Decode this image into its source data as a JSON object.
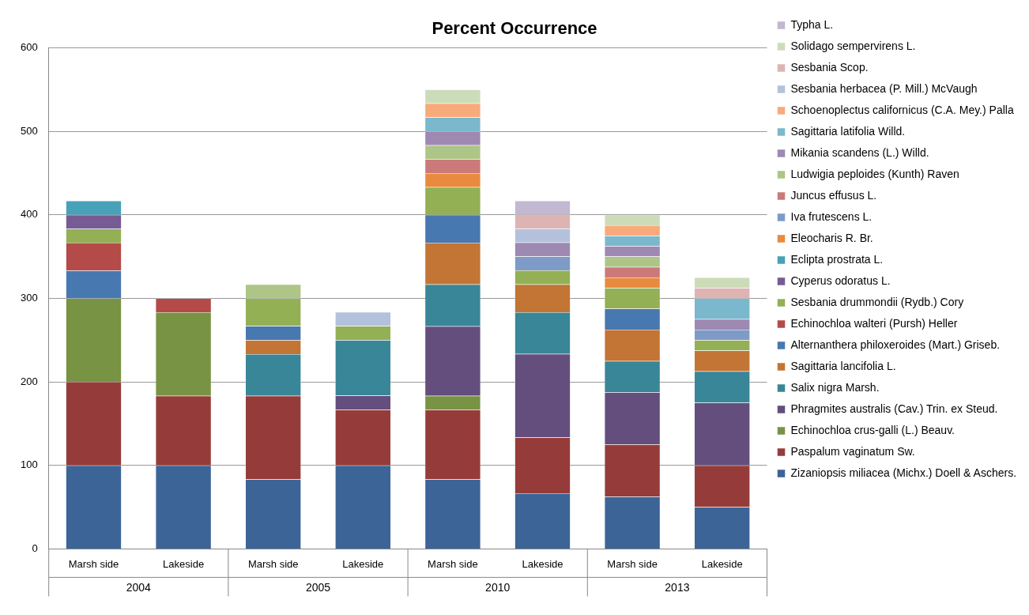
{
  "chart_data": {
    "type": "bar",
    "title": "Percent Occurrence",
    "stacked": true,
    "legend": "right",
    "grid": "y",
    "categories": [
      "Marsh side",
      "Lakeside",
      "Marsh side",
      "Lakeside",
      "Marsh side",
      "Lakeside",
      "Marsh side",
      "Lakeside"
    ],
    "annotations": [
      "2004",
      "2005",
      "2010",
      "2013"
    ],
    "ylim": [
      0,
      600
    ],
    "yticks": [
      0,
      100,
      200,
      300,
      400,
      500,
      600
    ],
    "series": [
      {
        "name": "Zizaniopsis miliacea (Michx.) Doell & Aschers.",
        "color": "#3c6497",
        "values": [
          100,
          100,
          83.3,
          100,
          83.3,
          66.7,
          62.5,
          50
        ]
      },
      {
        "name": "Paspalum vaginatum Sw.",
        "color": "#953c3a",
        "values": [
          100,
          83.3,
          100,
          66.7,
          83.3,
          66.7,
          62.5,
          50
        ]
      },
      {
        "name": "Echinochloa crus-galli (L.) Beauv.",
        "color": "#779343",
        "values": [
          100,
          100,
          null,
          null,
          16.7,
          null,
          null,
          null
        ]
      },
      {
        "name": "Phragmites australis (Cav.) Trin. ex Steud.",
        "color": "#634e7e",
        "values": [
          null,
          null,
          null,
          16.7,
          83.3,
          100,
          62.5,
          75
        ]
      },
      {
        "name": "Salix nigra Marsh.",
        "color": "#388698",
        "values": [
          null,
          null,
          50,
          66.7,
          50,
          50,
          37.5,
          37.5
        ]
      },
      {
        "name": "Sagittaria lancifolia L.",
        "color": "#c27535",
        "values": [
          null,
          null,
          16.7,
          null,
          50,
          33.3,
          37.5,
          25
        ]
      },
      {
        "name": "Alternanthera philoxeroides (Mart.) Griseb.",
        "color": "#4878b0",
        "values": [
          33.3,
          null,
          16.7,
          null,
          33.3,
          null,
          25,
          null
        ]
      },
      {
        "name": "Echinochloa walteri (Pursh) Heller",
        "color": "#b44b48",
        "values": [
          33.3,
          16.7,
          null,
          null,
          null,
          null,
          null,
          null
        ]
      },
      {
        "name": "Sesbania drummondii (Rydb.) Cory",
        "color": "#93b055",
        "values": [
          16.7,
          null,
          33.3,
          16.7,
          33.3,
          16.7,
          25,
          12.5
        ]
      },
      {
        "name": "Cyperus odoratus L.",
        "color": "#775b94",
        "values": [
          16.7,
          null,
          null,
          null,
          null,
          null,
          null,
          null
        ]
      },
      {
        "name": "Eclipta prostrata L.",
        "color": "#47a1b9",
        "values": [
          16.7,
          null,
          null,
          null,
          null,
          null,
          null,
          null
        ]
      },
      {
        "name": "Eleocharis R. Br.",
        "color": "#e88b3e",
        "values": [
          null,
          null,
          null,
          null,
          16.7,
          null,
          12.5,
          null
        ]
      },
      {
        "name": "Iva frutescens L.",
        "color": "#7e9bc8",
        "values": [
          null,
          null,
          null,
          null,
          null,
          16.7,
          null,
          12.5
        ]
      },
      {
        "name": "Juncus effusus L.",
        "color": "#cb7a79",
        "values": [
          null,
          null,
          null,
          null,
          16.7,
          null,
          12.5,
          null
        ]
      },
      {
        "name": "Ludwigia peploides (Kunth) Raven",
        "color": "#adc586",
        "values": [
          null,
          null,
          16.7,
          null,
          16.7,
          null,
          12.5,
          null
        ]
      },
      {
        "name": "Mikania scandens (L.) Willd.",
        "color": "#9d89b2",
        "values": [
          null,
          null,
          null,
          null,
          16.7,
          16.7,
          12.5,
          12.5
        ]
      },
      {
        "name": "Sagittaria latifolia Willd.",
        "color": "#7bb8cd",
        "values": [
          null,
          null,
          null,
          null,
          16.7,
          null,
          12.5,
          25
        ]
      },
      {
        "name": "Schoenoplectus californicus (C.A. Mey.) Palla",
        "color": "#f8aa7a",
        "values": [
          null,
          null,
          null,
          null,
          16.7,
          null,
          12.5,
          null
        ]
      },
      {
        "name": "Sesbania herbacea (P. Mill.) McVaugh",
        "color": "#b3c1dc",
        "values": [
          null,
          null,
          null,
          16.7,
          null,
          16.7,
          null,
          null
        ]
      },
      {
        "name": "Sesbania Scop.",
        "color": "#deb4b3",
        "values": [
          null,
          null,
          null,
          null,
          null,
          16.7,
          null,
          12.5
        ]
      },
      {
        "name": "Solidago sempervirens L.",
        "color": "#cddcb8",
        "values": [
          null,
          null,
          null,
          null,
          16.7,
          null,
          12.5,
          12.5
        ]
      },
      {
        "name": "Typha L.",
        "color": "#c2b8d1",
        "values": [
          null,
          null,
          null,
          null,
          null,
          16.7,
          null,
          null
        ]
      }
    ]
  }
}
